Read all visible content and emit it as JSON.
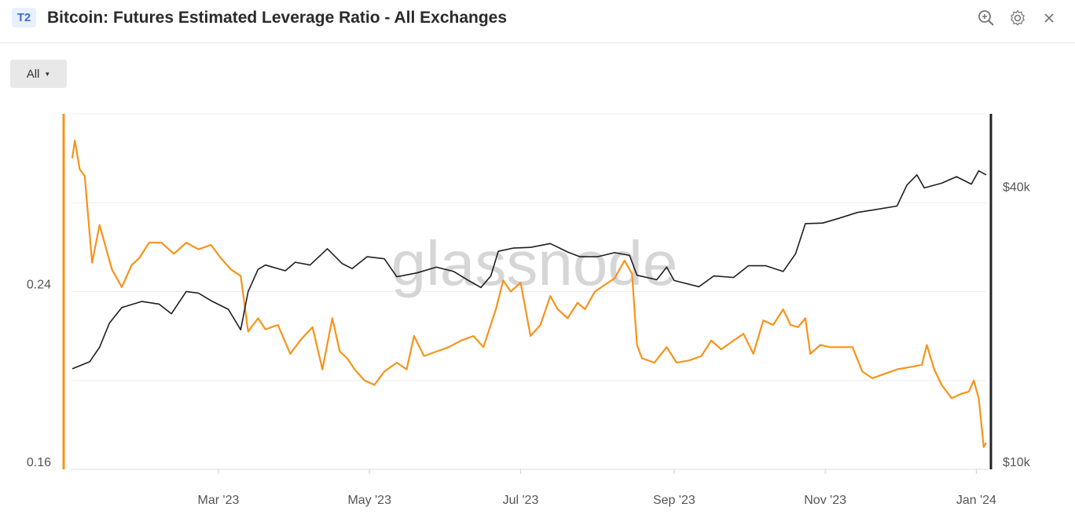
{
  "header": {
    "badge": "T2",
    "title": "Bitcoin: Futures Estimated Leverage Ratio - All Exchanges",
    "icons": [
      "zoom-icon",
      "gear-icon",
      "close-icon"
    ]
  },
  "controls": {
    "range_label": "All"
  },
  "watermark": "glassnode",
  "colors": {
    "leverage": "#f7931a",
    "price": "#1f1f1f",
    "badge_bg": "#e8f0fd",
    "badge_text": "#3d6fd9"
  },
  "chart_data": {
    "type": "line",
    "title": "Bitcoin: Futures Estimated Leverage Ratio - All Exchanges",
    "xlabel": "",
    "x_range": [
      "2023-01-01",
      "2024-01-05"
    ],
    "x_ticks": [
      "Mar '23",
      "May '23",
      "Jul '23",
      "Sep '23",
      "Nov '23",
      "Jan '24"
    ],
    "left_axis": {
      "ylim": [
        0.16,
        0.32
      ],
      "ticks": [
        "0.24",
        "0.16"
      ]
    },
    "right_axis": {
      "scale": "log",
      "ylim": [
        10000,
        60000
      ],
      "ticks": [
        "$40k",
        "$10k"
      ]
    },
    "grid": true,
    "series": [
      {
        "axis": "left",
        "color": "#f7931a",
        "points": [
          [
            "2023-01-01",
            0.3
          ],
          [
            "2023-01-02",
            0.308
          ],
          [
            "2023-01-04",
            0.295
          ],
          [
            "2023-01-06",
            0.292
          ],
          [
            "2023-01-09",
            0.253
          ],
          [
            "2023-01-12",
            0.27
          ],
          [
            "2023-01-14",
            0.262
          ],
          [
            "2023-01-17",
            0.25
          ],
          [
            "2023-01-21",
            0.242
          ],
          [
            "2023-01-25",
            0.252
          ],
          [
            "2023-01-28",
            0.255
          ],
          [
            "2023-02-01",
            0.262
          ],
          [
            "2023-02-06",
            0.262
          ],
          [
            "2023-02-11",
            0.257
          ],
          [
            "2023-02-16",
            0.262
          ],
          [
            "2023-02-21",
            0.259
          ],
          [
            "2023-02-26",
            0.261
          ],
          [
            "2023-03-02",
            0.255
          ],
          [
            "2023-03-06",
            0.25
          ],
          [
            "2023-03-10",
            0.247
          ],
          [
            "2023-03-13",
            0.222
          ],
          [
            "2023-03-17",
            0.228
          ],
          [
            "2023-03-20",
            0.223
          ],
          [
            "2023-03-25",
            0.225
          ],
          [
            "2023-03-30",
            0.212
          ],
          [
            "2023-04-03",
            0.218
          ],
          [
            "2023-04-08",
            0.224
          ],
          [
            "2023-04-12",
            0.205
          ],
          [
            "2023-04-16",
            0.228
          ],
          [
            "2023-04-19",
            0.213
          ],
          [
            "2023-04-22",
            0.21
          ],
          [
            "2023-04-25",
            0.205
          ],
          [
            "2023-04-29",
            0.2
          ],
          [
            "2023-05-03",
            0.198
          ],
          [
            "2023-05-07",
            0.204
          ],
          [
            "2023-05-12",
            0.208
          ],
          [
            "2023-05-16",
            0.205
          ],
          [
            "2023-05-19",
            0.22
          ],
          [
            "2023-05-23",
            0.211
          ],
          [
            "2023-05-28",
            0.213
          ],
          [
            "2023-06-02",
            0.215
          ],
          [
            "2023-06-07",
            0.218
          ],
          [
            "2023-06-12",
            0.22
          ],
          [
            "2023-06-16",
            0.215
          ],
          [
            "2023-06-21",
            0.232
          ],
          [
            "2023-06-24",
            0.245
          ],
          [
            "2023-06-27",
            0.24
          ],
          [
            "2023-07-01",
            0.244
          ],
          [
            "2023-07-05",
            0.22
          ],
          [
            "2023-07-09",
            0.225
          ],
          [
            "2023-07-13",
            0.238
          ],
          [
            "2023-07-16",
            0.232
          ],
          [
            "2023-07-20",
            0.228
          ],
          [
            "2023-07-24",
            0.235
          ],
          [
            "2023-07-27",
            0.232
          ],
          [
            "2023-07-31",
            0.24
          ],
          [
            "2023-08-04",
            0.243
          ],
          [
            "2023-08-08",
            0.246
          ],
          [
            "2023-08-12",
            0.254
          ],
          [
            "2023-08-15",
            0.248
          ],
          [
            "2023-08-17",
            0.216
          ],
          [
            "2023-08-19",
            0.21
          ],
          [
            "2023-08-24",
            0.208
          ],
          [
            "2023-08-29",
            0.215
          ],
          [
            "2023-09-02",
            0.208
          ],
          [
            "2023-09-07",
            0.209
          ],
          [
            "2023-09-12",
            0.211
          ],
          [
            "2023-09-16",
            0.218
          ],
          [
            "2023-09-20",
            0.214
          ],
          [
            "2023-09-25",
            0.218
          ],
          [
            "2023-09-29",
            0.221
          ],
          [
            "2023-10-03",
            0.212
          ],
          [
            "2023-10-07",
            0.227
          ],
          [
            "2023-10-11",
            0.225
          ],
          [
            "2023-10-15",
            0.232
          ],
          [
            "2023-10-18",
            0.225
          ],
          [
            "2023-10-21",
            0.224
          ],
          [
            "2023-10-24",
            0.228
          ],
          [
            "2023-10-26",
            0.212
          ],
          [
            "2023-10-30",
            0.216
          ],
          [
            "2023-11-03",
            0.215
          ],
          [
            "2023-11-07",
            0.215
          ],
          [
            "2023-11-12",
            0.215
          ],
          [
            "2023-11-16",
            0.204
          ],
          [
            "2023-11-20",
            0.201
          ],
          [
            "2023-11-25",
            0.203
          ],
          [
            "2023-11-30",
            0.205
          ],
          [
            "2023-12-05",
            0.206
          ],
          [
            "2023-12-10",
            0.207
          ],
          [
            "2023-12-12",
            0.216
          ],
          [
            "2023-12-15",
            0.205
          ],
          [
            "2023-12-18",
            0.198
          ],
          [
            "2023-12-22",
            0.192
          ],
          [
            "2023-12-26",
            0.194
          ],
          [
            "2023-12-29",
            0.195
          ],
          [
            "2023-12-31",
            0.2
          ],
          [
            "2024-01-02",
            0.192
          ],
          [
            "2024-01-04",
            0.17
          ],
          [
            "2024-01-05",
            0.172
          ]
        ]
      },
      {
        "axis": "right",
        "color": "#1f1f1f",
        "points": [
          [
            "2023-01-01",
            16600
          ],
          [
            "2023-01-08",
            17200
          ],
          [
            "2023-01-12",
            18500
          ],
          [
            "2023-01-16",
            20900
          ],
          [
            "2023-01-21",
            22600
          ],
          [
            "2023-01-29",
            23300
          ],
          [
            "2023-02-05",
            23000
          ],
          [
            "2023-02-10",
            21900
          ],
          [
            "2023-02-16",
            24500
          ],
          [
            "2023-02-21",
            24300
          ],
          [
            "2023-02-26",
            23400
          ],
          [
            "2023-03-05",
            22400
          ],
          [
            "2023-03-10",
            20200
          ],
          [
            "2023-03-13",
            24500
          ],
          [
            "2023-03-17",
            27400
          ],
          [
            "2023-03-20",
            28000
          ],
          [
            "2023-03-28",
            27200
          ],
          [
            "2023-04-01",
            28400
          ],
          [
            "2023-04-07",
            28000
          ],
          [
            "2023-04-14",
            30400
          ],
          [
            "2023-04-20",
            28200
          ],
          [
            "2023-04-24",
            27500
          ],
          [
            "2023-04-30",
            29200
          ],
          [
            "2023-05-07",
            28900
          ],
          [
            "2023-05-12",
            26400
          ],
          [
            "2023-05-20",
            26900
          ],
          [
            "2023-05-28",
            27700
          ],
          [
            "2023-06-04",
            27100
          ],
          [
            "2023-06-10",
            25900
          ],
          [
            "2023-06-15",
            25000
          ],
          [
            "2023-06-19",
            26500
          ],
          [
            "2023-06-22",
            30000
          ],
          [
            "2023-06-28",
            30500
          ],
          [
            "2023-07-05",
            30600
          ],
          [
            "2023-07-13",
            31200
          ],
          [
            "2023-07-20",
            29900
          ],
          [
            "2023-07-25",
            29200
          ],
          [
            "2023-08-01",
            29200
          ],
          [
            "2023-08-08",
            29800
          ],
          [
            "2023-08-14",
            29400
          ],
          [
            "2023-08-17",
            26600
          ],
          [
            "2023-08-25",
            26000
          ],
          [
            "2023-08-29",
            27700
          ],
          [
            "2023-09-01",
            25900
          ],
          [
            "2023-09-11",
            25100
          ],
          [
            "2023-09-17",
            26500
          ],
          [
            "2023-09-25",
            26300
          ],
          [
            "2023-10-01",
            27900
          ],
          [
            "2023-10-08",
            27900
          ],
          [
            "2023-10-15",
            27100
          ],
          [
            "2023-10-20",
            29600
          ],
          [
            "2023-10-24",
            34500
          ],
          [
            "2023-10-31",
            34600
          ],
          [
            "2023-11-07",
            35500
          ],
          [
            "2023-11-14",
            36500
          ],
          [
            "2023-11-21",
            37000
          ],
          [
            "2023-11-30",
            37700
          ],
          [
            "2023-12-04",
            41900
          ],
          [
            "2023-12-08",
            44100
          ],
          [
            "2023-12-11",
            41300
          ],
          [
            "2023-12-18",
            42300
          ],
          [
            "2023-12-24",
            43700
          ],
          [
            "2023-12-30",
            42100
          ],
          [
            "2024-01-02",
            45000
          ],
          [
            "2024-01-05",
            44100
          ]
        ]
      }
    ]
  }
}
